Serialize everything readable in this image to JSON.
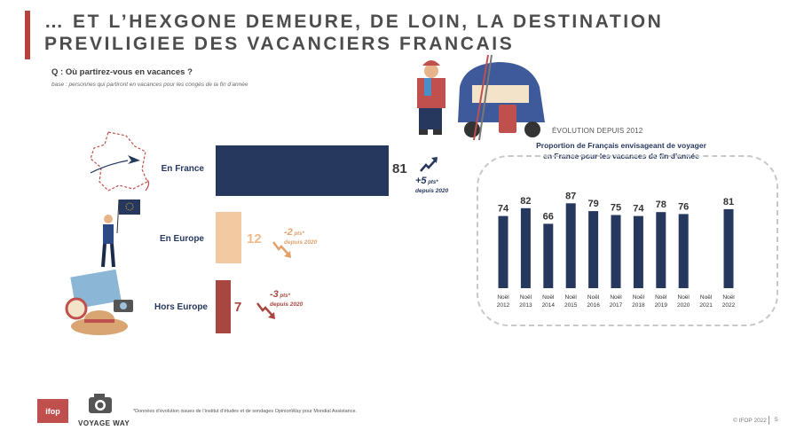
{
  "header": {
    "title": "… ET L’HEXGONE DEMEURE, DE LOIN, LA DESTINATION\nPREVILIGIEE DES VACANCIERS FRANCAIS",
    "question": "Q : Où partirez-vous en vacances ?",
    "base": "base : personnes qui partiront en vacances pour les congés de la fin d’année"
  },
  "colors": {
    "accent": "#b5443f",
    "navy": "#26385e",
    "peach": "#f2c9a1",
    "brick": "#a8473f",
    "grey_text": "#4d4d4d"
  },
  "destinations": [
    {
      "label": "En France",
      "value_label": "81",
      "delta_big": "+5",
      "delta_pts": " pts*",
      "delta_since": "depuis 2020"
    },
    {
      "label": "En Europe",
      "value_label": "12",
      "delta_big": "-2",
      "delta_pts": " pts*",
      "delta_since": "depuis 2020"
    },
    {
      "label": "Hors Europe",
      "value_label": "7",
      "delta_big": "-3",
      "delta_pts": " pts*",
      "delta_since": "depuis 2020"
    }
  ],
  "evolution": {
    "heading": "ÉVOLUTION DEPUIS 2012",
    "subtitle": "Proportion de Français envisageant de voyager en France pour les vacances de fin d’année"
  },
  "chart_data": [
    {
      "type": "bar",
      "orientation": "horizontal",
      "categories": [
        "En France",
        "En Europe",
        "Hors Europe"
      ],
      "values": [
        81,
        12,
        7
      ],
      "bar_colors": [
        "#26385e",
        "#f2c9a1",
        "#a8473f"
      ],
      "changes_since_2020": [
        5,
        -2,
        -3
      ],
      "xlim": [
        0,
        100
      ]
    },
    {
      "type": "bar",
      "title": "Proportion de Français envisageant de voyager en France pour les vacances de fin d’année",
      "categories": [
        "Noël 2012",
        "Noël 2013",
        "Noël 2014",
        "Noël 2015",
        "Noël 2016",
        "Noël 2017",
        "Noël 2018",
        "Noël 2019",
        "Noël 2020",
        "Noël 2021",
        "Noël 2022"
      ],
      "values": [
        74,
        82,
        66,
        87,
        79,
        75,
        74,
        78,
        76,
        null,
        81
      ],
      "ylim": [
        0,
        100
      ],
      "grid": false,
      "bar_color": "#26385e"
    }
  ],
  "footer": {
    "footnote": "*Données d’évolution issues de l’institut d’études et de sondages OpinionWay pour Mondial Assistance.",
    "copyright": "© IFOP 2022",
    "page": "5",
    "ifop_logo": "ifop",
    "voyage_logo": "VOYAGE WAY"
  }
}
